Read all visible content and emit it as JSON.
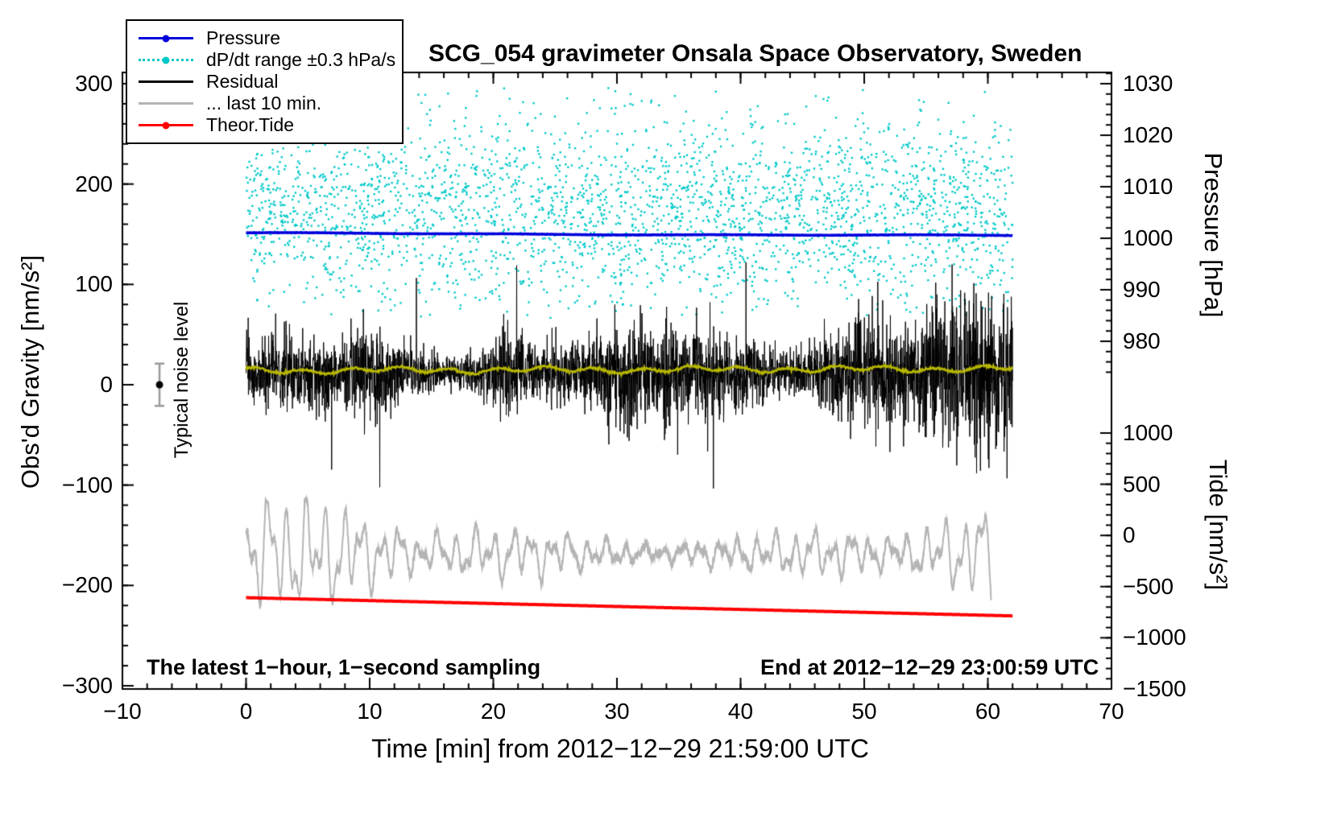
{
  "chart_data": {
    "type": "line",
    "title": "SCG_054 gravimeter Onsala Space Observatory, Sweden",
    "xlabel": "Time [min] from 2012−12−29 21:59:00 UTC",
    "ylabel_left": "Obs'd Gravity [nm/s²]",
    "ylabel_right_top": "Pressure [hPa]",
    "ylabel_right_bottom": "Tide [nm/s²]",
    "x_range": [
      -10,
      70
    ],
    "x_ticks": [
      -10,
      0,
      10,
      20,
      30,
      40,
      50,
      60,
      70
    ],
    "x_minor_step": 2,
    "gravity_range": [
      -300,
      300
    ],
    "gravity_ticks": [
      300,
      200,
      100,
      0,
      -100,
      -200,
      -300
    ],
    "gravity_minor_step": 20,
    "pressure_ticks": [
      1030,
      1020,
      1010,
      1000,
      990,
      980
    ],
    "pressure_minor_step": 2,
    "tide_ticks": [
      1000,
      500,
      0,
      -500,
      -1000,
      -1500
    ],
    "tide_minor_step": 100,
    "legend": [
      {
        "label": "Pressure",
        "color": "#0000dd",
        "style": "line-dot"
      },
      {
        "label": "dP/dt range ±0.3 hPa/s",
        "color": "#00c8c8",
        "style": "dots"
      },
      {
        "label": "Residual",
        "color": "#000000",
        "style": "line"
      },
      {
        "label": "... last 10 min.",
        "color": "#b4b4b4",
        "style": "line"
      },
      {
        "label": "Theor.Tide",
        "color": "#ff0000",
        "style": "line-dot"
      }
    ],
    "annotations": {
      "noise_label": "Typical noise level",
      "bottom_left": "The latest 1−hour, 1−second sampling",
      "bottom_right": "End at 2012−12−29 23:00:59 UTC"
    },
    "noise_marker": {
      "x": -7,
      "value": 0,
      "error": 21
    },
    "series": [
      {
        "id": "dpdt",
        "name": "dP/dt range ±0.3 hPa/s",
        "type": "scatter",
        "axis": "gravity",
        "color": "#00c8c8",
        "x_start": 0,
        "x_end": 62,
        "center": 172,
        "sd": 50,
        "clip": [
          66,
          296
        ],
        "count": 2900
      },
      {
        "id": "last10",
        "name": "... last 10 min.",
        "type": "wave",
        "axis": "gravity",
        "color": "#b4b4b4",
        "x_start": 0,
        "x_end": 60.3,
        "center": -168,
        "crest_limit": -106,
        "dip_limit": -260,
        "width": 2
      },
      {
        "id": "tide",
        "name": "Theor.Tide",
        "type": "trend",
        "axis": "tide",
        "color": "#ff0000",
        "x_start": 0,
        "x_end": 62,
        "start_value": -608,
        "end_value": -786,
        "width": 4
      },
      {
        "id": "residual",
        "name": "Residual",
        "type": "noise",
        "axis": "gravity",
        "color": "#000000",
        "x_start": 0,
        "x_end": 62,
        "mean": 12,
        "sigma": 26,
        "samples": 3600,
        "clip": [
          -112,
          132
        ],
        "width": 1
      },
      {
        "id": "residual_mean",
        "name": "Residual smoothed",
        "type": "trend",
        "axis": "gravity",
        "color": "#b6b600",
        "x_start": 0,
        "x_end": 62,
        "start_value": 14,
        "end_value": 16,
        "width": 2.5
      },
      {
        "id": "pressure",
        "name": "Pressure",
        "type": "trend",
        "axis": "pressure",
        "color": "#0000dd",
        "x_start": 0,
        "x_end": 62,
        "start_value": 1001.0,
        "end_value": 1000.5,
        "width": 3.5
      }
    ]
  }
}
